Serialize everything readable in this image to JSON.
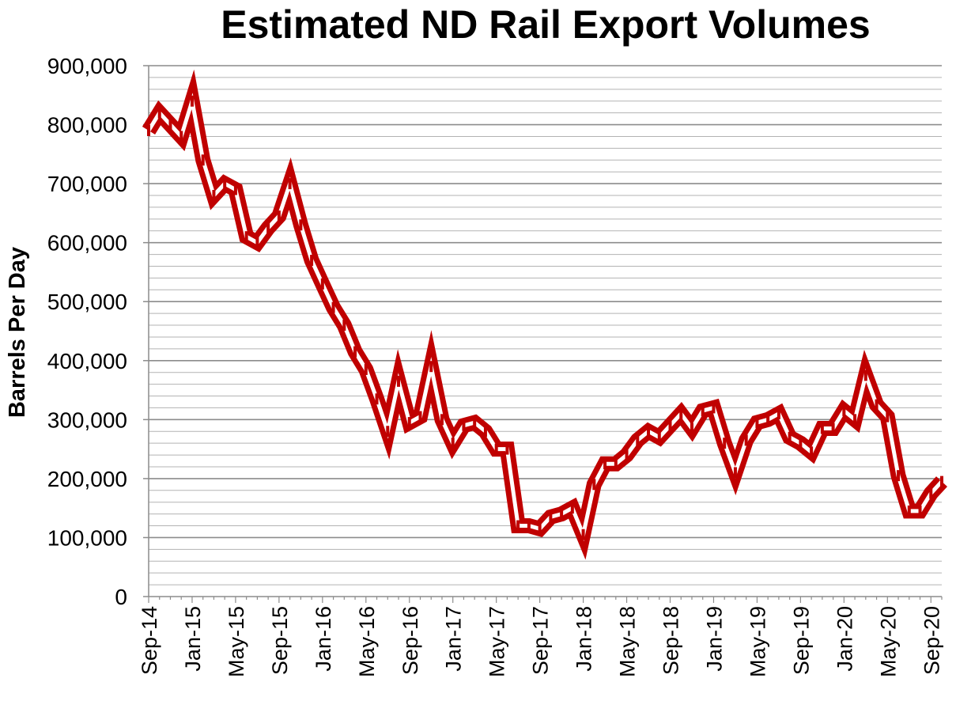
{
  "chart_data": {
    "type": "line",
    "title": "Estimated ND Rail Export Volumes",
    "ylabel": "Barrels Per Day",
    "xlabel": "",
    "ylim": [
      0,
      900000
    ],
    "y_ticks": [
      "0",
      "100,000",
      "200,000",
      "300,000",
      "400,000",
      "500,000",
      "600,000",
      "700,000",
      "800,000",
      "900,000"
    ],
    "x_ticks": [
      "Sep-14",
      "Jan-15",
      "May-15",
      "Sep-15",
      "Jan-16",
      "May-16",
      "Sep-16",
      "Jan-17",
      "May-17",
      "Sep-17",
      "Jan-18",
      "May-18",
      "Sep-18",
      "Jan-19",
      "May-19",
      "Sep-19",
      "Jan-20",
      "May-20",
      "Sep-20"
    ],
    "grid": true,
    "legend": "none",
    "series_color": "#c00000",
    "series": [
      {
        "values": [
          790000,
          820000,
          800000,
          780000,
          840000,
          740000,
          680000,
          700000,
          690000,
          610000,
          600000,
          625000,
          645000,
          700000,
          630000,
          570000,
          530000,
          490000,
          460000,
          415000,
          385000,
          335000,
          280000,
          365000,
          295000,
          305000,
          390000,
          300000,
          260000,
          290000,
          295000,
          280000,
          250000,
          250000,
          120000,
          120000,
          115000,
          135000,
          140000,
          150000,
          105000,
          190000,
          225000,
          225000,
          240000,
          265000,
          280000,
          270000,
          290000,
          310000,
          285000,
          315000,
          320000,
          260000,
          210000,
          265000,
          295000,
          300000,
          310000,
          270000,
          260000,
          245000,
          285000,
          285000,
          315000,
          300000,
          375000,
          325000,
          305000,
          205000,
          145000,
          145000,
          175000,
          195000
        ]
      }
    ]
  }
}
